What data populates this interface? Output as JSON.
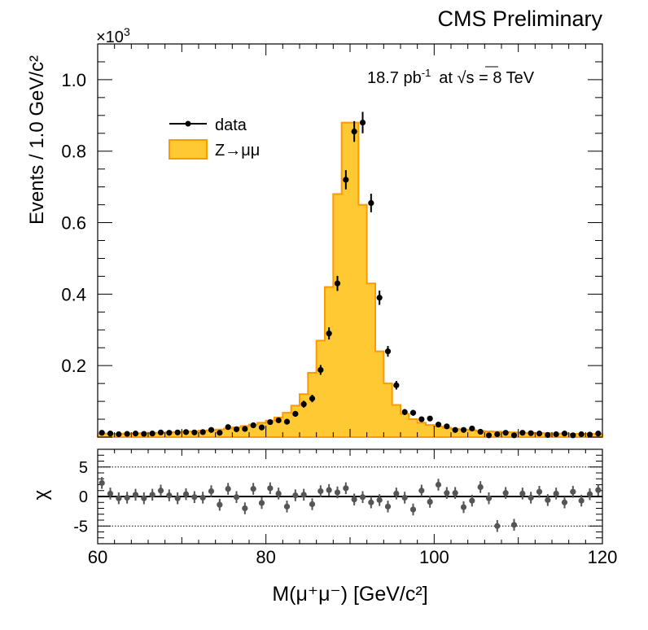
{
  "header": {
    "experiment_label": "CMS Preliminary"
  },
  "top_panel": {
    "exponent_base": "×10",
    "exponent_power": "3",
    "lumi_value": "18.7 pb",
    "lumi_power": "-1",
    "energy_prefix": "at ",
    "energy_sqrt": "√",
    "energy_rest": "s = 8 TeV",
    "ylabel": "Events / 1.0 GeV/c²",
    "legend": {
      "data_label": "data",
      "mc_label": "Z→μμ"
    }
  },
  "bottom_panel": {
    "ylabel": "χ"
  },
  "xaxis": {
    "label": "M(μ⁺μ⁻) [GeV/c²]"
  },
  "colors": {
    "fill": "#ffc933",
    "line": "#ff9900",
    "data": "#000000",
    "pull": "#555555"
  },
  "chart_data": [
    {
      "type": "histogram_with_data_points",
      "title": "CMS Preliminary",
      "xlabel": "M(μ⁺μ⁻) [GeV/c²]",
      "ylabel": "Events / 1.0 GeV/c²",
      "y_scale_note": "×10³",
      "xlim": [
        60,
        120
      ],
      "ylim": [
        0,
        1.1
      ],
      "yticks": [
        0.2,
        0.4,
        0.6,
        0.8,
        1.0
      ],
      "ytick_labels": [
        "0.2",
        "0.4",
        "0.6",
        "0.8",
        "1.0"
      ],
      "xticks": [
        60,
        80,
        100,
        120
      ],
      "xtick_labels": [
        "60",
        "80",
        "100",
        "120"
      ],
      "series": [
        {
          "name": "Z→μμ",
          "style": "filled-step",
          "bin_edges_start": 60,
          "bin_width": 1,
          "values": [
            0.01,
            0.009,
            0.009,
            0.01,
            0.01,
            0.011,
            0.012,
            0.012,
            0.013,
            0.014,
            0.015,
            0.016,
            0.018,
            0.019,
            0.021,
            0.024,
            0.027,
            0.031,
            0.035,
            0.04,
            0.046,
            0.055,
            0.068,
            0.088,
            0.12,
            0.18,
            0.27,
            0.42,
            0.68,
            0.88,
            0.88,
            0.65,
            0.43,
            0.24,
            0.15,
            0.09,
            0.065,
            0.05,
            0.04,
            0.034,
            0.03,
            0.026,
            0.023,
            0.021,
            0.019,
            0.017,
            0.016,
            0.015,
            0.014,
            0.013,
            0.012,
            0.012,
            0.011,
            0.011,
            0.01,
            0.01,
            0.009,
            0.009,
            0.009,
            0.008
          ]
        },
        {
          "name": "data",
          "style": "points-with-errors",
          "x": [
            60.5,
            61.5,
            62.5,
            63.5,
            64.5,
            65.5,
            66.5,
            67.5,
            68.5,
            69.5,
            70.5,
            71.5,
            72.5,
            73.5,
            74.5,
            75.5,
            76.5,
            77.5,
            78.5,
            79.5,
            80.5,
            81.5,
            82.5,
            83.5,
            84.5,
            85.5,
            86.5,
            87.5,
            88.5,
            89.5,
            90.5,
            91.5,
            92.5,
            93.5,
            94.5,
            95.5,
            96.5,
            97.5,
            98.5,
            99.5,
            100.5,
            101.5,
            102.5,
            103.5,
            104.5,
            105.5,
            106.5,
            107.5,
            108.5,
            109.5,
            110.5,
            111.5,
            112.5,
            113.5,
            114.5,
            115.5,
            116.5,
            117.5,
            118.5,
            119.5
          ],
          "y": [
            0.012,
            0.01,
            0.008,
            0.009,
            0.01,
            0.009,
            0.01,
            0.013,
            0.012,
            0.013,
            0.014,
            0.013,
            0.014,
            0.02,
            0.012,
            0.028,
            0.022,
            0.023,
            0.033,
            0.027,
            0.042,
            0.047,
            0.043,
            0.065,
            0.092,
            0.108,
            0.188,
            0.29,
            0.43,
            0.72,
            0.855,
            0.88,
            0.655,
            0.39,
            0.24,
            0.145,
            0.07,
            0.068,
            0.05,
            0.052,
            0.035,
            0.03,
            0.02,
            0.02,
            0.024,
            0.015,
            0.005,
            0.008,
            0.012,
            0.005,
            0.012,
            0.011,
            0.01,
            0.006,
            0.008,
            0.01,
            0.005,
            0.008,
            0.007,
            0.01
          ],
          "yerr": [
            0.0035,
            0.0032,
            0.0029,
            0.003,
            0.0032,
            0.003,
            0.0032,
            0.0036,
            0.0035,
            0.0036,
            0.0037,
            0.0036,
            0.0037,
            0.0045,
            0.0035,
            0.0053,
            0.0047,
            0.0048,
            0.0057,
            0.0052,
            0.0065,
            0.0069,
            0.0066,
            0.0081,
            0.0096,
            0.0104,
            0.0137,
            0.017,
            0.021,
            0.027,
            0.029,
            0.03,
            0.026,
            0.02,
            0.015,
            0.012,
            0.0084,
            0.0082,
            0.0071,
            0.0072,
            0.0059,
            0.0055,
            0.0045,
            0.0045,
            0.0049,
            0.0039,
            0.0022,
            0.0028,
            0.0035,
            0.0022,
            0.0035,
            0.0033,
            0.0032,
            0.0024,
            0.0028,
            0.0032,
            0.0022,
            0.0028,
            0.0026,
            0.0032
          ]
        }
      ],
      "annotations": [
        "18.7 pb⁻¹ at √s = 8 TeV"
      ],
      "legend_position": "upper-left"
    },
    {
      "type": "scatter",
      "title": "",
      "xlabel": "M(μ⁺μ⁻) [GeV/c²]",
      "ylabel": "χ",
      "xlim": [
        60,
        120
      ],
      "ylim": [
        -8,
        8
      ],
      "yticks": [
        -5,
        0,
        5
      ],
      "ytick_labels": [
        "-5",
        "0",
        "5"
      ],
      "reference_lines": [
        -5,
        0,
        5
      ],
      "series": [
        {
          "name": "pull",
          "x": [
            60.5,
            61.5,
            62.5,
            63.5,
            64.5,
            65.5,
            66.5,
            67.5,
            68.5,
            69.5,
            70.5,
            71.5,
            72.5,
            73.5,
            74.5,
            75.5,
            76.5,
            77.5,
            78.5,
            79.5,
            80.5,
            81.5,
            82.5,
            83.5,
            84.5,
            85.5,
            86.5,
            87.5,
            88.5,
            89.5,
            90.5,
            91.5,
            92.5,
            93.5,
            94.5,
            95.5,
            96.5,
            97.5,
            98.5,
            99.5,
            100.5,
            101.5,
            102.5,
            103.5,
            104.5,
            105.5,
            106.5,
            107.5,
            108.5,
            109.5,
            110.5,
            111.5,
            112.5,
            113.5,
            114.5,
            115.5,
            116.5,
            117.5,
            118.5,
            119.5
          ],
          "values": [
            2.3,
            0.5,
            -0.3,
            -0.2,
            0.3,
            -0.3,
            0.3,
            1.0,
            0.2,
            -0.3,
            0.4,
            -0.1,
            -0.2,
            0.9,
            -1.4,
            1.3,
            -0.1,
            -2.0,
            1.3,
            -1.1,
            1.4,
            0.5,
            -1.7,
            0.2,
            0.3,
            -1.3,
            0.9,
            1.1,
            0.7,
            1.4,
            -0.5,
            -0.1,
            -1.0,
            -0.6,
            -1.7,
            0.5,
            -0.2,
            -2.2,
            1.0,
            -0.9,
            2.0,
            0.6,
            0.6,
            -1.8,
            -0.7,
            1.6,
            -0.3,
            -5.0,
            0.6,
            -4.8,
            0.5,
            -0.2,
            0.8,
            -0.6,
            0.5,
            -1.0,
            0.8,
            -0.7,
            0.4,
            1.1
          ],
          "yerr": [
            1,
            1,
            1,
            1,
            1,
            1,
            1,
            1,
            1,
            1,
            1,
            1,
            1,
            1,
            1,
            1,
            1,
            1,
            1,
            1,
            1,
            1,
            1,
            1,
            1,
            1,
            1,
            1,
            1,
            1,
            1,
            1,
            1,
            1,
            1,
            1,
            1,
            1,
            1,
            1,
            1,
            1,
            1,
            1,
            1,
            1,
            1,
            1,
            1,
            1,
            1,
            1,
            1,
            1,
            1,
            1,
            1,
            1,
            1,
            1
          ]
        }
      ]
    }
  ]
}
